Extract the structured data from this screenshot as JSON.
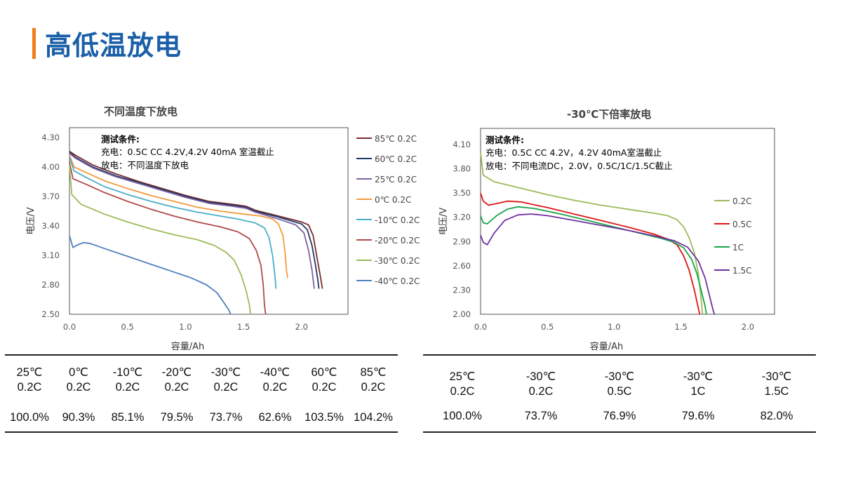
{
  "page": {
    "title": "高低温放电"
  },
  "chart_data": [
    {
      "type": "line",
      "title": "不同温度下放电",
      "xlabel": "容量/Ah",
      "ylabel": "电压/V",
      "xlim": [
        0,
        2.4
      ],
      "ylim": [
        2.5,
        4.4
      ],
      "x_ticks": [
        "0.0",
        "0.5",
        "1.0",
        "1.5",
        "2.0"
      ],
      "y_ticks": [
        "2.50",
        "2.80",
        "3.10",
        "3.40",
        "3.70",
        "4.00",
        "4.30"
      ],
      "note_title": "测试条件:",
      "note_lines": [
        "充电：0.5C CC 4.2V,4.2V 40mA 室温截止",
        "放电：不同温度下放电"
      ],
      "legend_position": "right",
      "series": [
        {
          "name": "85℃ 0.2C",
          "color": "#7a2b2b",
          "points": [
            [
              0,
              4.16
            ],
            [
              0.05,
              4.12
            ],
            [
              0.2,
              4.02
            ],
            [
              0.4,
              3.93
            ],
            [
              0.6,
              3.85
            ],
            [
              0.8,
              3.78
            ],
            [
              1.0,
              3.71
            ],
            [
              1.2,
              3.65
            ],
            [
              1.4,
              3.62
            ],
            [
              1.52,
              3.6
            ],
            [
              1.6,
              3.56
            ],
            [
              1.8,
              3.5
            ],
            [
              2.0,
              3.44
            ],
            [
              2.06,
              3.41
            ],
            [
              2.1,
              3.3
            ],
            [
              2.13,
              3.1
            ],
            [
              2.16,
              2.9
            ],
            [
              2.18,
              2.76
            ]
          ]
        },
        {
          "name": "60℃ 0.2C",
          "color": "#1f3866",
          "points": [
            [
              0,
              4.15
            ],
            [
              0.05,
              4.1
            ],
            [
              0.2,
              4.0
            ],
            [
              0.4,
              3.91
            ],
            [
              0.6,
              3.84
            ],
            [
              0.8,
              3.77
            ],
            [
              1.0,
              3.7
            ],
            [
              1.2,
              3.64
            ],
            [
              1.4,
              3.61
            ],
            [
              1.52,
              3.59
            ],
            [
              1.6,
              3.55
            ],
            [
              1.8,
              3.49
            ],
            [
              2.0,
              3.42
            ],
            [
              2.05,
              3.36
            ],
            [
              2.09,
              3.2
            ],
            [
              2.12,
              3.0
            ],
            [
              2.14,
              2.85
            ],
            [
              2.15,
              2.76
            ]
          ]
        },
        {
          "name": "25℃ 0.2C",
          "color": "#7b62a3",
          "points": [
            [
              0,
              4.14
            ],
            [
              0.05,
              4.09
            ],
            [
              0.2,
              3.99
            ],
            [
              0.4,
              3.9
            ],
            [
              0.6,
              3.83
            ],
            [
              0.8,
              3.76
            ],
            [
              1.0,
              3.69
            ],
            [
              1.2,
              3.63
            ],
            [
              1.4,
              3.6
            ],
            [
              1.52,
              3.58
            ],
            [
              1.6,
              3.54
            ],
            [
              1.8,
              3.47
            ],
            [
              1.95,
              3.41
            ],
            [
              2.02,
              3.33
            ],
            [
              2.06,
              3.15
            ],
            [
              2.09,
              2.95
            ],
            [
              2.1,
              2.85
            ],
            [
              2.11,
              2.76
            ]
          ]
        },
        {
          "name": "0℃ 0.2C",
          "color": "#f39a3c",
          "points": [
            [
              0,
              4.12
            ],
            [
              0.04,
              4.0
            ],
            [
              0.15,
              3.94
            ],
            [
              0.3,
              3.86
            ],
            [
              0.5,
              3.78
            ],
            [
              0.7,
              3.71
            ],
            [
              0.9,
              3.65
            ],
            [
              1.1,
              3.59
            ],
            [
              1.3,
              3.55
            ],
            [
              1.5,
              3.52
            ],
            [
              1.65,
              3.5
            ],
            [
              1.75,
              3.47
            ],
            [
              1.8,
              3.42
            ],
            [
              1.84,
              3.3
            ],
            [
              1.86,
              3.1
            ],
            [
              1.87,
              2.95
            ],
            [
              1.88,
              2.87
            ]
          ]
        },
        {
          "name": "-10℃ 0.2C",
          "color": "#4aaec7",
          "points": [
            [
              0,
              4.1
            ],
            [
              0.04,
              3.96
            ],
            [
              0.15,
              3.89
            ],
            [
              0.3,
              3.8
            ],
            [
              0.5,
              3.72
            ],
            [
              0.7,
              3.65
            ],
            [
              0.9,
              3.59
            ],
            [
              1.1,
              3.54
            ],
            [
              1.3,
              3.5
            ],
            [
              1.45,
              3.47
            ],
            [
              1.6,
              3.43
            ],
            [
              1.68,
              3.38
            ],
            [
              1.72,
              3.28
            ],
            [
              1.75,
              3.1
            ],
            [
              1.77,
              2.9
            ],
            [
              1.78,
              2.76
            ]
          ]
        },
        {
          "name": "-20℃ 0.2C",
          "color": "#b04a4a",
          "points": [
            [
              0,
              4.05
            ],
            [
              0.03,
              3.88
            ],
            [
              0.15,
              3.82
            ],
            [
              0.3,
              3.74
            ],
            [
              0.5,
              3.65
            ],
            [
              0.7,
              3.57
            ],
            [
              0.9,
              3.5
            ],
            [
              1.1,
              3.44
            ],
            [
              1.3,
              3.39
            ],
            [
              1.45,
              3.34
            ],
            [
              1.55,
              3.27
            ],
            [
              1.61,
              3.15
            ],
            [
              1.65,
              3.0
            ],
            [
              1.67,
              2.8
            ],
            [
              1.68,
              2.6
            ],
            [
              1.69,
              2.5
            ]
          ]
        },
        {
          "name": "-30℃ 0.2C",
          "color": "#9bbb59",
          "points": [
            [
              0,
              4.02
            ],
            [
              0.02,
              3.72
            ],
            [
              0.1,
              3.62
            ],
            [
              0.3,
              3.52
            ],
            [
              0.5,
              3.44
            ],
            [
              0.7,
              3.37
            ],
            [
              0.9,
              3.31
            ],
            [
              1.1,
              3.26
            ],
            [
              1.25,
              3.2
            ],
            [
              1.35,
              3.13
            ],
            [
              1.42,
              3.05
            ],
            [
              1.48,
              2.9
            ],
            [
              1.52,
              2.75
            ],
            [
              1.55,
              2.6
            ],
            [
              1.56,
              2.5
            ]
          ]
        },
        {
          "name": "-40℃ 0.2C",
          "color": "#4f81bd",
          "points": [
            [
              0,
              3.3
            ],
            [
              0.03,
              3.18
            ],
            [
              0.06,
              3.2
            ],
            [
              0.12,
              3.23
            ],
            [
              0.18,
              3.22
            ],
            [
              0.3,
              3.17
            ],
            [
              0.5,
              3.09
            ],
            [
              0.7,
              3.01
            ],
            [
              0.9,
              2.93
            ],
            [
              1.05,
              2.87
            ],
            [
              1.18,
              2.8
            ],
            [
              1.27,
              2.72
            ],
            [
              1.33,
              2.62
            ],
            [
              1.37,
              2.55
            ],
            [
              1.39,
              2.5
            ]
          ]
        }
      ]
    },
    {
      "type": "line",
      "title": "-30℃下倍率放电",
      "xlabel": "容量/Ah",
      "ylabel": "电压/V",
      "xlim": [
        0,
        2.2
      ],
      "ylim": [
        2.0,
        4.3
      ],
      "x_ticks": [
        "0.0",
        "0.5",
        "1.0",
        "1.5",
        "2.0"
      ],
      "y_ticks": [
        "2.00",
        "2.30",
        "2.60",
        "2.90",
        "3.20",
        "3.50",
        "3.80",
        "4.10"
      ],
      "note_title": "测试条件:",
      "note_lines": [
        "充电：0.5C CC 4.2V，4.2V 40mA室温截止",
        "放电：不同电流DC，2.0V，0.5C/1C/1.5C截止"
      ],
      "legend_position": "right",
      "series": [
        {
          "name": "0.2C",
          "color": "#9bbb59",
          "points": [
            [
              0,
              4.0
            ],
            [
              0.02,
              3.72
            ],
            [
              0.1,
              3.64
            ],
            [
              0.3,
              3.56
            ],
            [
              0.5,
              3.48
            ],
            [
              0.7,
              3.41
            ],
            [
              0.9,
              3.35
            ],
            [
              1.1,
              3.3
            ],
            [
              1.3,
              3.25
            ],
            [
              1.4,
              3.22
            ],
            [
              1.47,
              3.17
            ],
            [
              1.52,
              3.08
            ],
            [
              1.56,
              2.95
            ],
            [
              1.6,
              2.76
            ],
            [
              1.63,
              2.5
            ],
            [
              1.65,
              2.2
            ],
            [
              1.66,
              2.0
            ]
          ]
        },
        {
          "name": "0.5C",
          "color": "#e01414",
          "points": [
            [
              0,
              3.5
            ],
            [
              0.02,
              3.4
            ],
            [
              0.06,
              3.35
            ],
            [
              0.12,
              3.37
            ],
            [
              0.2,
              3.4
            ],
            [
              0.3,
              3.39
            ],
            [
              0.5,
              3.32
            ],
            [
              0.7,
              3.24
            ],
            [
              0.9,
              3.16
            ],
            [
              1.1,
              3.08
            ],
            [
              1.3,
              2.99
            ],
            [
              1.4,
              2.93
            ],
            [
              1.47,
              2.86
            ],
            [
              1.52,
              2.72
            ],
            [
              1.56,
              2.55
            ],
            [
              1.6,
              2.3
            ],
            [
              1.62,
              2.15
            ],
            [
              1.64,
              2.0
            ]
          ]
        },
        {
          "name": "1C",
          "color": "#1aa34a",
          "points": [
            [
              0,
              3.22
            ],
            [
              0.02,
              3.13
            ],
            [
              0.05,
              3.12
            ],
            [
              0.12,
              3.22
            ],
            [
              0.2,
              3.3
            ],
            [
              0.28,
              3.33
            ],
            [
              0.4,
              3.31
            ],
            [
              0.6,
              3.24
            ],
            [
              0.8,
              3.16
            ],
            [
              1.0,
              3.08
            ],
            [
              1.2,
              3.0
            ],
            [
              1.35,
              2.94
            ],
            [
              1.45,
              2.89
            ],
            [
              1.52,
              2.82
            ],
            [
              1.58,
              2.68
            ],
            [
              1.62,
              2.5
            ],
            [
              1.65,
              2.3
            ],
            [
              1.68,
              2.1
            ],
            [
              1.69,
              2.0
            ]
          ]
        },
        {
          "name": "1.5C",
          "color": "#7030a0",
          "points": [
            [
              0,
              2.98
            ],
            [
              0.02,
              2.89
            ],
            [
              0.05,
              2.86
            ],
            [
              0.1,
              3.0
            ],
            [
              0.18,
              3.16
            ],
            [
              0.28,
              3.23
            ],
            [
              0.38,
              3.24
            ],
            [
              0.5,
              3.22
            ],
            [
              0.7,
              3.16
            ],
            [
              0.9,
              3.1
            ],
            [
              1.1,
              3.04
            ],
            [
              1.3,
              2.97
            ],
            [
              1.45,
              2.91
            ],
            [
              1.55,
              2.83
            ],
            [
              1.63,
              2.66
            ],
            [
              1.68,
              2.45
            ],
            [
              1.71,
              2.25
            ],
            [
              1.74,
              2.05
            ],
            [
              1.75,
              2.0
            ]
          ]
        }
      ]
    }
  ],
  "table1": {
    "temps": [
      "25℃",
      "0℃",
      "-10℃",
      "-20℃",
      "-30℃",
      "-40℃",
      "60℃",
      "85℃"
    ],
    "rates": [
      "0.2C",
      "0.2C",
      "0.2C",
      "0.2C",
      "0.2C",
      "0.2C",
      "0.2C",
      "0.2C"
    ],
    "values": [
      "100.0%",
      "90.3%",
      "85.1%",
      "79.5%",
      "73.7%",
      "62.6%",
      "103.5%",
      "104.2%"
    ]
  },
  "table2": {
    "temps": [
      "25℃",
      "-30℃",
      "-30℃",
      "-30℃",
      "-30℃"
    ],
    "rates": [
      "0.2C",
      "0.2C",
      "0.5C",
      "1C",
      "1.5C"
    ],
    "values": [
      "100.0%",
      "73.7%",
      "76.9%",
      "79.6%",
      "82.0%"
    ]
  }
}
